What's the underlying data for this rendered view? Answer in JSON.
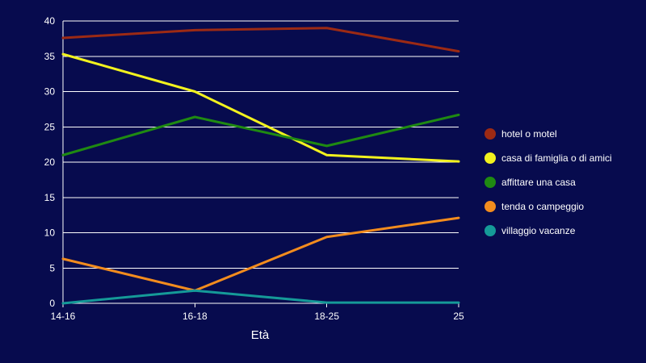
{
  "chart_data": {
    "type": "line",
    "xlabel": "Età",
    "ylabel": "",
    "categories": [
      "14-16",
      "16-18",
      "18-25",
      "25"
    ],
    "ylim": [
      0,
      40
    ],
    "yticks": [
      0,
      5,
      10,
      15,
      20,
      25,
      30,
      35,
      40
    ],
    "grid": true,
    "legend_position": "right",
    "series": [
      {
        "name": "hotel o motel",
        "color": "#9c2a14",
        "values": [
          37.6,
          38.7,
          39.0,
          35.7
        ]
      },
      {
        "name": "casa di famiglia o di amici",
        "color": "#f2f21e",
        "values": [
          35.3,
          30.0,
          21.0,
          20.1
        ]
      },
      {
        "name": "affittare una casa",
        "color": "#1f8a12",
        "values": [
          21.0,
          26.4,
          22.3,
          26.7
        ]
      },
      {
        "name": "tenda o campeggio",
        "color": "#f28c1e",
        "values": [
          6.3,
          1.8,
          9.4,
          12.1
        ]
      },
      {
        "name": "villaggio vacanze",
        "color": "#159a98",
        "values": [
          0.0,
          1.8,
          0.1,
          0.1
        ]
      }
    ]
  }
}
